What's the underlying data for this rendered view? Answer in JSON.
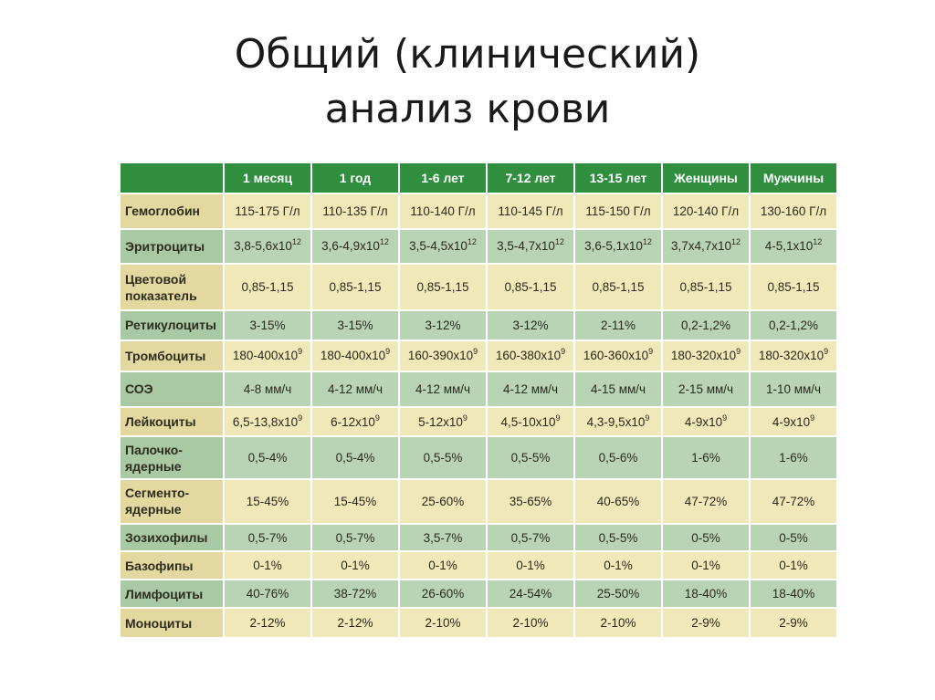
{
  "title": {
    "line1": "Общий (клинический)",
    "line2": "анализ крови"
  },
  "table": {
    "columns": [
      "",
      "1 месяц",
      "1 год",
      "1-6 лет",
      "7-12 лет",
      "13-15 лет",
      "Женщины",
      "Мужчины"
    ],
    "rows": [
      {
        "label": "Гемоглобин",
        "cells": [
          {
            "t": "115-175 Г/л"
          },
          {
            "t": "110-135 Г/л"
          },
          {
            "t": "110-140 Г/л"
          },
          {
            "t": "110-145 Г/л"
          },
          {
            "t": "115-150 Г/л"
          },
          {
            "t": "120-140 Г/л"
          },
          {
            "t": "130-160 Г/л"
          }
        ]
      },
      {
        "label": "Эритроциты",
        "cells": [
          {
            "t": "3,8-5,6х10",
            "sup": "12"
          },
          {
            "t": "3,6-4,9х10",
            "sup": "12"
          },
          {
            "t": "3,5-4,5х10",
            "sup": "12"
          },
          {
            "t": "3,5-4,7х10",
            "sup": "12"
          },
          {
            "t": "3,6-5,1х10",
            "sup": "12"
          },
          {
            "t": "3,7х4,7х10",
            "sup": "12"
          },
          {
            "t": "4-5,1х10",
            "sup": "12"
          }
        ]
      },
      {
        "label": "Цветовой показатель",
        "cells": [
          {
            "t": "0,85-1,15"
          },
          {
            "t": "0,85-1,15"
          },
          {
            "t": "0,85-1,15"
          },
          {
            "t": "0,85-1,15"
          },
          {
            "t": "0,85-1,15"
          },
          {
            "t": "0,85-1,15"
          },
          {
            "t": "0,85-1,15"
          }
        ]
      },
      {
        "label": "Ретикулоциты",
        "cells": [
          {
            "t": "3-15%"
          },
          {
            "t": "3-15%"
          },
          {
            "t": "3-12%"
          },
          {
            "t": "3-12%"
          },
          {
            "t": "2-11%"
          },
          {
            "t": "0,2-1,2%"
          },
          {
            "t": "0,2-1,2%"
          }
        ]
      },
      {
        "label": "Тромбоциты",
        "cells": [
          {
            "t": "180-400х10",
            "sup": "9"
          },
          {
            "t": "180-400х10",
            "sup": "9"
          },
          {
            "t": "160-390х10",
            "sup": "9"
          },
          {
            "t": "160-380х10",
            "sup": "9"
          },
          {
            "t": "160-360х10",
            "sup": "9"
          },
          {
            "t": "180-320х10",
            "sup": "9"
          },
          {
            "t": "180-320х10",
            "sup": "9"
          }
        ]
      },
      {
        "label": "СОЭ",
        "cells": [
          {
            "t": "4-8 мм/ч"
          },
          {
            "t": "4-12 мм/ч"
          },
          {
            "t": "4-12 мм/ч"
          },
          {
            "t": "4-12 мм/ч"
          },
          {
            "t": "4-15 мм/ч"
          },
          {
            "t": "2-15 мм/ч"
          },
          {
            "t": "1-10 мм/ч"
          }
        ]
      },
      {
        "label": "Лейкоциты",
        "cells": [
          {
            "t": "6,5-13,8х10",
            "sup": "9"
          },
          {
            "t": "6-12х10",
            "sup": "9"
          },
          {
            "t": "5-12х10",
            "sup": "9"
          },
          {
            "t": "4,5-10х10",
            "sup": "9"
          },
          {
            "t": "4,3-9,5х10",
            "sup": "9"
          },
          {
            "t": "4-9х10",
            "sup": "9"
          },
          {
            "t": "4-9х10",
            "sup": "9"
          }
        ]
      },
      {
        "label": "Палочко-ядерные",
        "cells": [
          {
            "t": "0,5-4%"
          },
          {
            "t": "0,5-4%"
          },
          {
            "t": "0,5-5%"
          },
          {
            "t": "0,5-5%"
          },
          {
            "t": "0,5-6%"
          },
          {
            "t": "1-6%"
          },
          {
            "t": "1-6%"
          }
        ]
      },
      {
        "label": "Сегменто-ядерные",
        "cells": [
          {
            "t": "15-45%"
          },
          {
            "t": "15-45%"
          },
          {
            "t": "25-60%"
          },
          {
            "t": "35-65%"
          },
          {
            "t": "40-65%"
          },
          {
            "t": "47-72%"
          },
          {
            "t": "47-72%"
          }
        ]
      },
      {
        "label": "Зозихофилы",
        "cells": [
          {
            "t": "0,5-7%"
          },
          {
            "t": "0,5-7%"
          },
          {
            "t": "3,5-7%"
          },
          {
            "t": "0,5-7%"
          },
          {
            "t": "0,5-5%"
          },
          {
            "t": "0-5%"
          },
          {
            "t": "0-5%"
          }
        ]
      },
      {
        "label": "Базофипы",
        "cells": [
          {
            "t": "0-1%"
          },
          {
            "t": "0-1%"
          },
          {
            "t": "0-1%"
          },
          {
            "t": "0-1%"
          },
          {
            "t": "0-1%"
          },
          {
            "t": "0-1%"
          },
          {
            "t": "0-1%"
          }
        ]
      },
      {
        "label": "Лимфоциты",
        "cells": [
          {
            "t": "40-76%"
          },
          {
            "t": "38-72%"
          },
          {
            "t": "26-60%"
          },
          {
            "t": "24-54%"
          },
          {
            "t": "25-50%"
          },
          {
            "t": "18-40%"
          },
          {
            "t": "18-40%"
          }
        ]
      },
      {
        "label": "Моноциты",
        "cells": [
          {
            "t": "2-12%"
          },
          {
            "t": "2-12%"
          },
          {
            "t": "2-10%"
          },
          {
            "t": "2-10%"
          },
          {
            "t": "2-10%"
          },
          {
            "t": "2-9%"
          },
          {
            "t": "2-9%"
          }
        ]
      }
    ]
  },
  "colors": {
    "header_green": "#2f8f3e",
    "row_yellow": "#f0e8b8",
    "row_green": "#b9d4b4"
  }
}
